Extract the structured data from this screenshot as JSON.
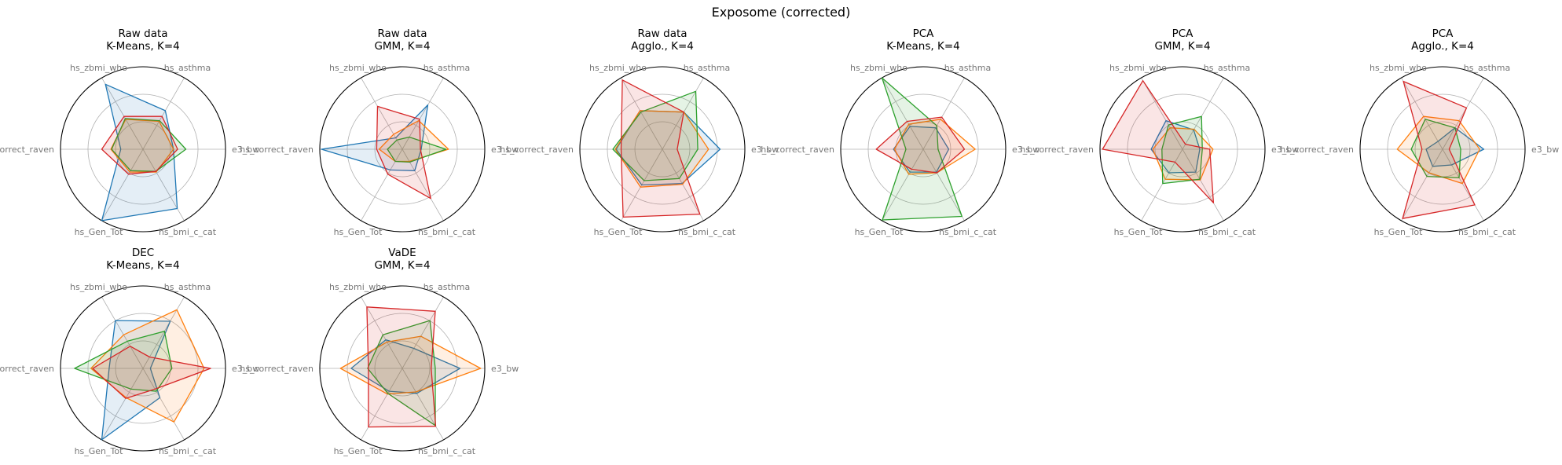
{
  "figure": {
    "title": "Exposome (corrected)"
  },
  "axes_labels": [
    "e3_bw",
    "hs_asthma",
    "hs_zbmi_who",
    "hs_correct_raven",
    "hs_Gen_Tot",
    "hs_bmi_c_cat"
  ],
  "series_colors": [
    "#1f77b4",
    "#ff7f0e",
    "#2ca02c",
    "#d62728"
  ],
  "chart_data": [
    {
      "type": "radar",
      "title": "Raw data\nK-Means, K=4",
      "categories": [
        "e3_bw",
        "hs_asthma",
        "hs_zbmi_who",
        "hs_correct_raven",
        "hs_Gen_Tot",
        "hs_bmi_c_cat"
      ],
      "rlim": [
        0,
        1
      ],
      "grid": true,
      "series": [
        {
          "values": [
            0.37,
            0.54,
            0.91,
            0.27,
            1.0,
            0.83
          ]
        },
        {
          "values": [
            0.37,
            0.39,
            0.42,
            0.39,
            0.32,
            0.32
          ]
        },
        {
          "values": [
            0.52,
            0.4,
            0.43,
            0.38,
            0.3,
            0.31
          ]
        },
        {
          "values": [
            0.42,
            0.46,
            0.46,
            0.5,
            0.35,
            0.31
          ]
        }
      ]
    },
    {
      "type": "radar",
      "title": "Raw data\nGMM, K=4",
      "categories": [
        "e3_bw",
        "hs_asthma",
        "hs_zbmi_who",
        "hs_correct_raven",
        "hs_Gen_Tot",
        "hs_bmi_c_cat"
      ],
      "rlim": [
        0,
        1
      ],
      "grid": true,
      "series": [
        {
          "values": [
            0.23,
            0.62,
            0.16,
            0.98,
            0.29,
            0.3
          ]
        },
        {
          "values": [
            0.56,
            0.4,
            0.21,
            0.28,
            0.17,
            0.17
          ]
        },
        {
          "values": [
            0.53,
            0.17,
            0.13,
            0.18,
            0.17,
            0.18
          ]
        },
        {
          "values": [
            0.22,
            0.42,
            0.6,
            0.31,
            0.35,
            0.69
          ]
        }
      ]
    },
    {
      "type": "radar",
      "title": "Raw data\nAgglo., K=4",
      "categories": [
        "e3_bw",
        "hs_asthma",
        "hs_zbmi_who",
        "hs_correct_raven",
        "hs_Gen_Tot",
        "hs_bmi_c_cat"
      ],
      "rlim": [
        0,
        1
      ],
      "grid": true,
      "series": [
        {
          "values": [
            0.7,
            0.52,
            0.54,
            0.56,
            0.5,
            0.48
          ]
        },
        {
          "values": [
            0.56,
            0.52,
            0.54,
            0.57,
            0.53,
            0.49
          ]
        },
        {
          "values": [
            0.43,
            0.81,
            0.52,
            0.6,
            0.44,
            0.41
          ]
        },
        {
          "values": [
            0.18,
            0.52,
            0.97,
            0.5,
            0.95,
            0.91
          ]
        }
      ]
    },
    {
      "type": "radar",
      "title": "PCA\nK-Means, K=4",
      "categories": [
        "e3_bw",
        "hs_asthma",
        "hs_zbmi_who",
        "hs_correct_raven",
        "hs_Gen_Tot",
        "hs_bmi_c_cat"
      ],
      "rlim": [
        0,
        1
      ],
      "grid": true,
      "series": [
        {
          "values": [
            0.31,
            0.3,
            0.32,
            0.36,
            0.32,
            0.32
          ]
        },
        {
          "values": [
            0.63,
            0.42,
            0.35,
            0.35,
            0.35,
            0.33
          ]
        },
        {
          "values": [
            0.18,
            0.33,
            1.0,
            0.21,
            0.99,
            0.94
          ]
        },
        {
          "values": [
            0.5,
            0.45,
            0.39,
            0.57,
            0.28,
            0.33
          ]
        }
      ]
    },
    {
      "type": "radar",
      "title": "PCA\nGMM, K=4",
      "categories": [
        "e3_bw",
        "hs_asthma",
        "hs_zbmi_who",
        "hs_correct_raven",
        "hs_Gen_Tot",
        "hs_bmi_c_cat"
      ],
      "rlim": [
        0,
        1
      ],
      "grid": true,
      "series": [
        {
          "values": [
            0.21,
            0.27,
            0.4,
            0.38,
            0.33,
            0.32
          ]
        },
        {
          "values": [
            0.37,
            0.28,
            0.3,
            0.36,
            0.42,
            0.43
          ]
        },
        {
          "values": [
            0.24,
            0.46,
            0.34,
            0.25,
            0.48,
            0.42
          ]
        },
        {
          "values": [
            0.33,
            0.07,
            0.96,
            0.97,
            0.18,
            0.75
          ]
        }
      ]
    },
    {
      "type": "radar",
      "title": "PCA\nAgglo., K=4",
      "categories": [
        "e3_bw",
        "hs_asthma",
        "hs_zbmi_who",
        "hs_correct_raven",
        "hs_Gen_Tot",
        "hs_bmi_c_cat"
      ],
      "rlim": [
        0,
        1
      ],
      "grid": true,
      "series": [
        {
          "values": [
            0.5,
            0.3,
            0.11,
            0.2,
            0.24,
            0.22
          ]
        },
        {
          "values": [
            0.45,
            0.4,
            0.46,
            0.55,
            0.33,
            0.48
          ]
        },
        {
          "values": [
            0.22,
            0.3,
            0.42,
            0.38,
            0.38,
            0.4
          ]
        },
        {
          "values": [
            0.08,
            0.58,
            0.95,
            0.25,
            0.97,
            0.78
          ]
        }
      ]
    },
    {
      "type": "radar",
      "title": "DEC\nK-Means, K=4",
      "categories": [
        "e3_bw",
        "hs_asthma",
        "hs_zbmi_who",
        "hs_correct_raven",
        "hs_Gen_Tot",
        "hs_bmi_c_cat"
      ],
      "rlim": [
        0,
        1
      ],
      "grid": true,
      "series": [
        {
          "values": [
            0.09,
            0.66,
            0.67,
            0.41,
            1.0,
            0.41
          ]
        },
        {
          "values": [
            0.74,
            0.82,
            0.47,
            0.63,
            0.41,
            0.75
          ]
        },
        {
          "values": [
            0.35,
            0.52,
            0.38,
            0.83,
            0.29,
            0.32
          ]
        },
        {
          "values": [
            0.82,
            0.16,
            0.31,
            0.61,
            0.42,
            0.29
          ]
        }
      ]
    },
    {
      "type": "radar",
      "title": "VaDE\nGMM, K=4",
      "categories": [
        "e3_bw",
        "hs_asthma",
        "hs_zbmi_who",
        "hs_correct_raven",
        "hs_Gen_Tot",
        "hs_bmi_c_cat"
      ],
      "rlim": [
        0,
        1
      ],
      "grid": true,
      "series": [
        {
          "values": [
            0.7,
            0.28,
            0.4,
            0.62,
            0.32,
            0.35
          ]
        },
        {
          "values": [
            0.95,
            0.45,
            0.37,
            0.75,
            0.36,
            0.33
          ]
        },
        {
          "values": [
            0.4,
            0.67,
            0.47,
            0.42,
            0.35,
            0.8
          ]
        },
        {
          "values": [
            0.35,
            0.8,
            0.86,
            0.41,
            0.82,
            0.81
          ]
        }
      ]
    }
  ]
}
